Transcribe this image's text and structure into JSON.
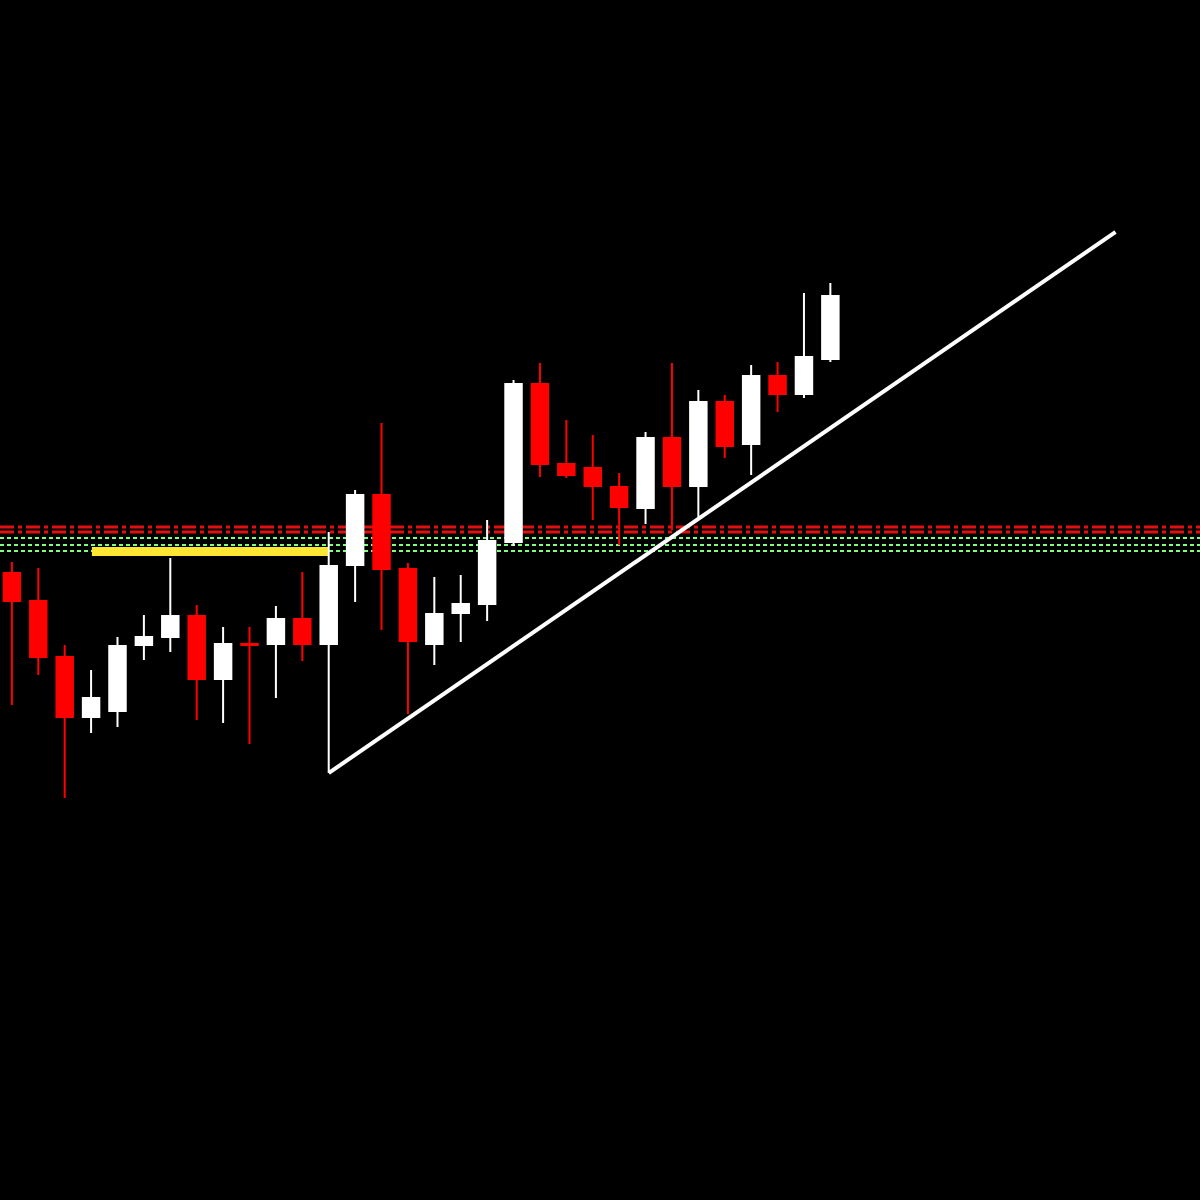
{
  "chart_data": {
    "type": "candlestick",
    "x": [
      0,
      1,
      2,
      3,
      4,
      5,
      6,
      7,
      8,
      9,
      10,
      11,
      12,
      13,
      14,
      15,
      16,
      17,
      18,
      19,
      20,
      21,
      22,
      23,
      24,
      25,
      26,
      27,
      28,
      29,
      30,
      31
    ],
    "open": [
      628,
      600,
      544,
      482,
      488,
      554,
      562,
      585,
      520,
      557,
      555,
      582,
      555,
      634,
      706,
      632,
      555,
      586,
      595,
      657,
      817,
      737,
      733,
      714,
      691,
      763,
      713,
      799,
      755,
      825,
      805,
      840
    ],
    "high": [
      638,
      632,
      555,
      530,
      563,
      585,
      642,
      595,
      573,
      573,
      594,
      628,
      668,
      710,
      777,
      637,
      623,
      625,
      680,
      820,
      837,
      780,
      765,
      727,
      768,
      837,
      810,
      805,
      835,
      838,
      907,
      917
    ],
    "low": [
      495,
      525,
      402,
      467,
      473,
      540,
      548,
      480,
      477,
      456,
      502,
      539,
      427,
      598,
      570,
      486,
      535,
      558,
      579,
      654,
      723,
      722,
      680,
      655,
      676,
      670,
      680,
      742,
      725,
      788,
      802,
      838
    ],
    "close": [
      598,
      542,
      482,
      503,
      555,
      564,
      585,
      520,
      557,
      554,
      582,
      555,
      635,
      706,
      630,
      558,
      587,
      597,
      660,
      817,
      735,
      724,
      713,
      692,
      763,
      713,
      799,
      753,
      825,
      805,
      844,
      905
    ],
    "up_color": "#ffffff",
    "down_color": "#ff0000",
    "xlim": [
      -0.45,
      45
    ],
    "ylim": [
      0,
      1200
    ],
    "resistance_levels": {
      "values": [
        673,
        668
      ],
      "color": "#e01010"
    },
    "support_levels": {
      "values": [
        662,
        655,
        649
      ],
      "color": "#7fff7f"
    },
    "zone": {
      "x": [
        3.03,
        11.97
      ],
      "values": [
        653,
        644
      ],
      "color": "#ffe633"
    },
    "trendline": {
      "x": [
        12,
        41.8
      ],
      "values": [
        427,
        968
      ],
      "color": "#ffffff"
    }
  }
}
